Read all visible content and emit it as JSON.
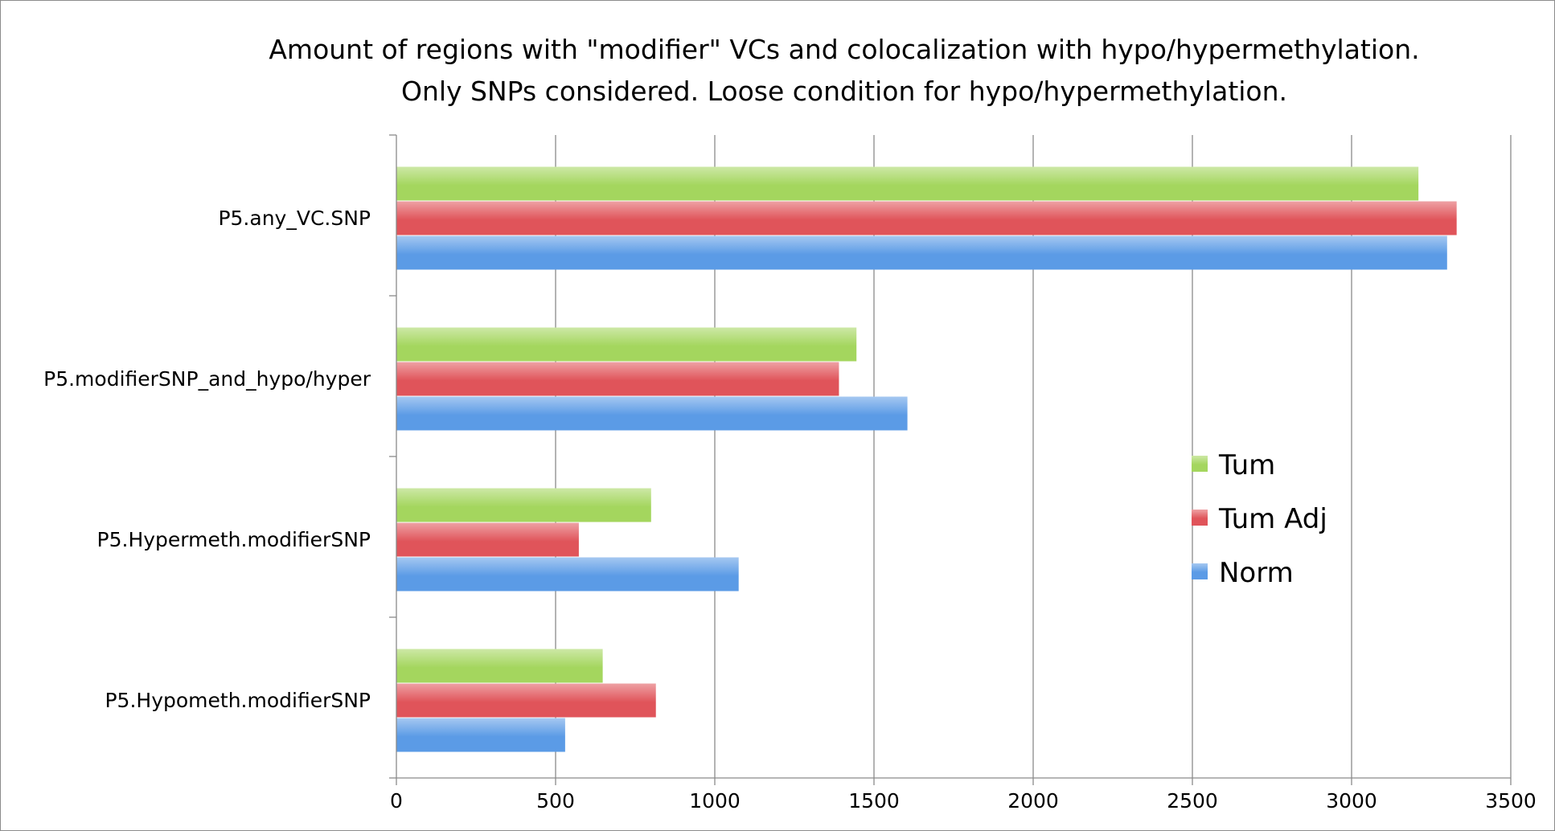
{
  "chart_data": {
    "type": "bar",
    "orientation": "horizontal",
    "title_lines": [
      "Amount of regions with \"modifier\" VCs and colocalization with hypo/hypermethylation.",
      "Only SNPs considered. Loose condition for hypo/hypermethylation."
    ],
    "xlabel": "",
    "ylabel": "",
    "xlim": [
      0,
      3500
    ],
    "x_ticks": [
      0,
      500,
      1000,
      1500,
      2000,
      2500,
      3000,
      3500
    ],
    "grid": "vertical",
    "legend_position": "right",
    "categories": [
      "P5.any_VC.SNP",
      "P5.modifierSNP_and_hypo/hyper",
      "P5.Hypermeth.modifierSNP",
      "P5.Hypometh.modifierSNP"
    ],
    "series": [
      {
        "name": "Tum",
        "color": "#a4d65e",
        "values": [
          3210,
          1445,
          800,
          648
        ]
      },
      {
        "name": "Tum Adj",
        "color": "#e0545a",
        "values": [
          3330,
          1390,
          573,
          815
        ]
      },
      {
        "name": "Norm",
        "color": "#5b9be6",
        "values": [
          3300,
          1605,
          1075,
          530
        ]
      }
    ]
  }
}
